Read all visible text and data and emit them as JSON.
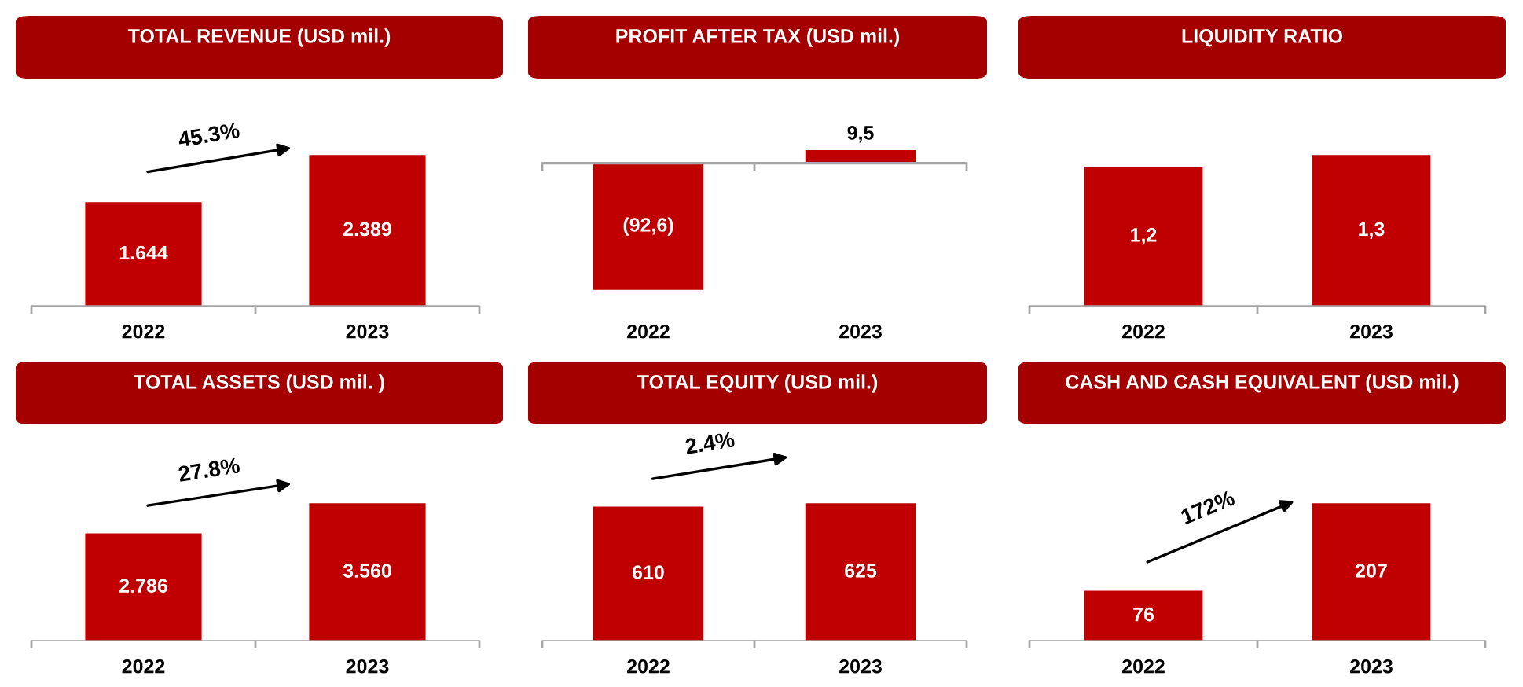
{
  "chart_data": [
    {
      "type": "bar",
      "title": "TOTAL REVENUE (USD mil.)",
      "categories": [
        "2022",
        "2023"
      ],
      "values": [
        1644,
        2389
      ],
      "value_labels": [
        "1.644",
        "2.389"
      ],
      "color": "#c00000",
      "tick_labels": "x",
      "annotations": [
        "45.3%"
      ]
    },
    {
      "type": "bar",
      "title": "PROFIT AFTER TAX (USD mil.)",
      "categories": [
        "2022",
        "2023"
      ],
      "values": [
        -92.6,
        9.5
      ],
      "value_labels": [
        "(92,6)",
        "9,5"
      ],
      "color": "#c00000",
      "tick_labels": "x"
    },
    {
      "type": "bar",
      "title": "LIQUIDITY RATIO",
      "categories": [
        "2022",
        "2023"
      ],
      "values": [
        1.2,
        1.3
      ],
      "value_labels": [
        "1,2",
        "1,3"
      ],
      "color": "#c00000",
      "tick_labels": "x"
    },
    {
      "type": "bar",
      "title": "TOTAL ASSETS (USD mil. )",
      "categories": [
        "2022",
        "2023"
      ],
      "values": [
        2786,
        3560
      ],
      "value_labels": [
        "2.786",
        "3.560"
      ],
      "color": "#c00000",
      "tick_labels": "x",
      "annotations": [
        "27.8%"
      ]
    },
    {
      "type": "bar",
      "title": "TOTAL EQUITY (USD mil.)",
      "categories": [
        "2022",
        "2023"
      ],
      "values": [
        610,
        625
      ],
      "value_labels": [
        "610",
        "625"
      ],
      "color": "#c00000",
      "tick_labels": "x",
      "annotations": [
        "2.4%"
      ]
    },
    {
      "type": "bar",
      "title": "CASH AND CASH EQUIVALENT (USD mil.)",
      "categories": [
        "2022",
        "2023"
      ],
      "values": [
        76,
        207
      ],
      "value_labels": [
        "76",
        "207"
      ],
      "color": "#c00000",
      "tick_labels": "x",
      "annotations": [
        "172%"
      ]
    }
  ]
}
